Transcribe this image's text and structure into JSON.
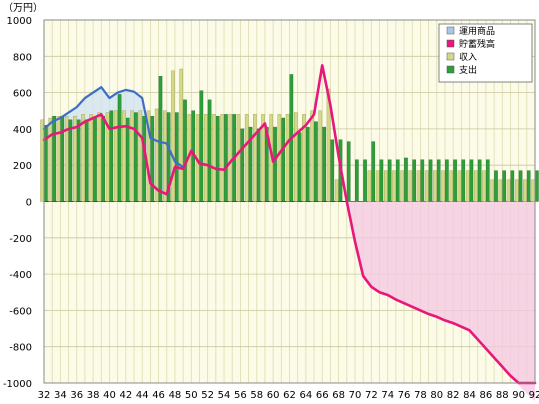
{
  "chart_data": {
    "type": "bar",
    "unit_label": "（万円）",
    "y_ticks": [
      "1000",
      "800",
      "600",
      "400",
      "200",
      "0",
      "-200",
      "-400",
      "-600",
      "-800",
      "-1000"
    ],
    "ylim": [
      -1000,
      1000
    ],
    "x_range": [
      32,
      92
    ],
    "x_ticks": [
      32,
      34,
      36,
      38,
      40,
      42,
      44,
      46,
      48,
      50,
      52,
      54,
      56,
      58,
      60,
      62,
      64,
      66,
      68,
      70,
      72,
      74,
      76,
      78,
      80,
      82,
      84,
      86,
      88,
      90,
      92
    ],
    "grid": true,
    "legend_position": "top-right",
    "legend": [
      {
        "label": "運用商品",
        "color": "#a9c8e8"
      },
      {
        "label": "貯蓄残高",
        "color": "#e8177a"
      },
      {
        "label": "収入",
        "color": "#d4d98a"
      },
      {
        "label": "支出",
        "color": "#2e9e3a"
      }
    ],
    "series": [
      {
        "name": "収入",
        "kind": "bar",
        "color": "#d4d98a",
        "values": [
          450,
          460,
          470,
          470,
          470,
          480,
          480,
          490,
          490,
          500,
          500,
          500,
          500,
          500,
          510,
          500,
          720,
          730,
          480,
          480,
          480,
          480,
          480,
          480,
          480,
          480,
          480,
          480,
          480,
          480,
          480,
          490,
          480,
          500,
          500,
          620,
          120,
          0,
          0,
          0,
          170,
          170,
          170,
          170,
          170,
          170,
          170,
          170,
          170,
          170,
          170,
          170,
          170,
          170,
          170,
          120,
          120,
          120,
          120,
          120,
          120
        ]
      },
      {
        "name": "支出",
        "kind": "bar",
        "color": "#2e9e3a",
        "values": [
          420,
          470,
          470,
          450,
          450,
          450,
          460,
          470,
          500,
          590,
          460,
          490,
          470,
          470,
          690,
          490,
          490,
          560,
          500,
          610,
          560,
          470,
          480,
          480,
          400,
          410,
          400,
          410,
          410,
          460,
          700,
          380,
          410,
          440,
          410,
          340,
          340,
          330,
          230,
          230,
          330,
          230,
          230,
          230,
          240,
          230,
          230,
          230,
          230,
          230,
          230,
          230,
          230,
          230,
          230,
          170,
          170,
          170,
          170,
          170,
          170
        ]
      },
      {
        "name": "運用商品",
        "kind": "line",
        "color": "#3f6cc8",
        "values": [
          400,
          440,
          460,
          490,
          520,
          570,
          600,
          630,
          570,
          600,
          615,
          605,
          570,
          350,
          330,
          320,
          220,
          190,
          null,
          null,
          null,
          null,
          null,
          null,
          null,
          null,
          null,
          null,
          null,
          null,
          null,
          null,
          null,
          null,
          null,
          null,
          null,
          null,
          null,
          null,
          null,
          null,
          null,
          null,
          null,
          null,
          null,
          null,
          null,
          null,
          null,
          null,
          null,
          null,
          null,
          null,
          null,
          null,
          null,
          null,
          null
        ]
      },
      {
        "name": "貯蓄残高",
        "kind": "line",
        "color": "#e8177a",
        "values": [
          340,
          370,
          380,
          400,
          410,
          440,
          460,
          480,
          400,
          410,
          415,
          400,
          350,
          100,
          60,
          40,
          190,
          180,
          280,
          210,
          200,
          180,
          175,
          230,
          280,
          330,
          380,
          430,
          220,
          280,
          340,
          380,
          420,
          480,
          750,
          530,
          250,
          0,
          -220,
          -410,
          -470,
          -500,
          -515,
          -540,
          -560,
          -580,
          -600,
          -620,
          -635,
          -655,
          -670,
          -690,
          -710,
          -760,
          -810,
          -860,
          -910,
          -960,
          -1010,
          -1060,
          -1100
        ]
      }
    ]
  }
}
